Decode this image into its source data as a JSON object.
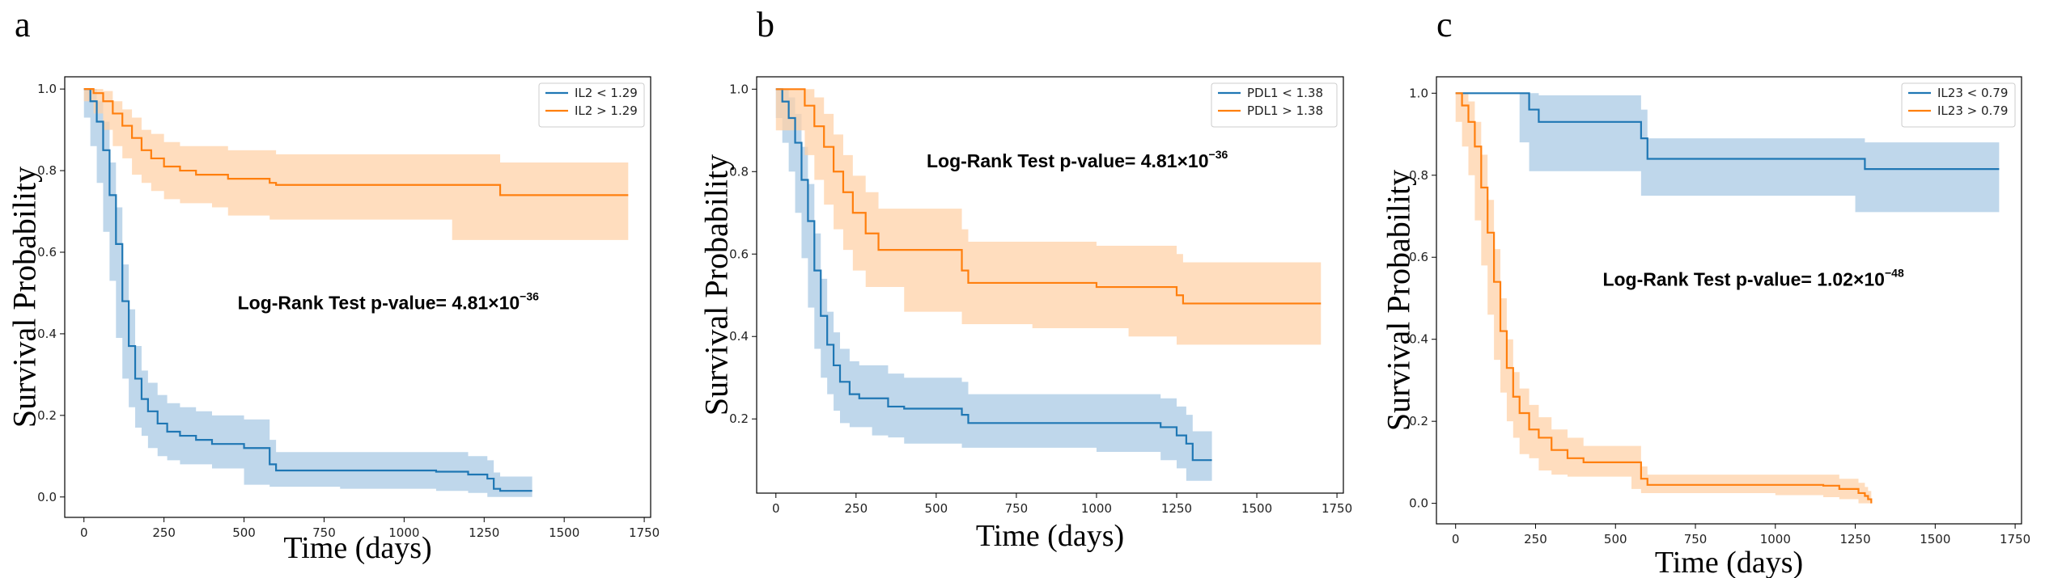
{
  "colors": {
    "blue": "#1f77b4",
    "orange": "#ff7f0e",
    "blue_fill": "#aac9e4",
    "orange_fill": "#ffd2a8"
  },
  "chart_data": [
    {
      "panel": "a",
      "type": "line",
      "title": "",
      "xlabel": "Time (days)",
      "ylabel": "Survival Probability",
      "xlim": [
        -60,
        1770
      ],
      "ylim": [
        -0.05,
        1.03
      ],
      "xticks": [
        0,
        250,
        500,
        750,
        1000,
        1250,
        1500,
        1750
      ],
      "xtick_labels": [
        "0",
        "250",
        "500",
        "750",
        "1000",
        "1250",
        "1500",
        "1750"
      ],
      "yticks": [
        0.0,
        0.2,
        0.4,
        0.6,
        0.8,
        1.0
      ],
      "ytick_labels": [
        "0.0",
        "0.2",
        "0.4",
        "0.6",
        "0.8",
        "1.0"
      ],
      "legend": "top-right",
      "annotation": {
        "text": "Log-Rank Test p-value= 4.81×10",
        "exp": "−36",
        "x": 480,
        "y": 0.46
      },
      "series": [
        {
          "name": "IL2 < 1.29",
          "color": "blue",
          "x": [
            0,
            20,
            40,
            60,
            80,
            100,
            120,
            140,
            160,
            180,
            200,
            230,
            260,
            300,
            350,
            400,
            500,
            580,
            600,
            800,
            1100,
            1200,
            1260,
            1280,
            1300,
            1400
          ],
          "y": [
            1.0,
            0.97,
            0.92,
            0.85,
            0.74,
            0.62,
            0.48,
            0.37,
            0.29,
            0.24,
            0.21,
            0.18,
            0.16,
            0.15,
            0.14,
            0.13,
            0.12,
            0.08,
            0.065,
            0.065,
            0.062,
            0.055,
            0.045,
            0.02,
            0.015,
            0.015
          ],
          "lower": [
            1.0,
            0.93,
            0.86,
            0.77,
            0.65,
            0.53,
            0.39,
            0.29,
            0.22,
            0.17,
            0.15,
            0.12,
            0.1,
            0.09,
            0.08,
            0.08,
            0.07,
            0.03,
            0.025,
            0.025,
            0.02,
            0.015,
            0.01,
            0.0,
            0.0,
            0.0
          ],
          "upper": [
            1.0,
            1.0,
            0.97,
            0.92,
            0.82,
            0.71,
            0.57,
            0.46,
            0.37,
            0.31,
            0.28,
            0.25,
            0.23,
            0.22,
            0.21,
            0.2,
            0.19,
            0.14,
            0.11,
            0.11,
            0.11,
            0.1,
            0.09,
            0.06,
            0.05,
            0.05
          ]
        },
        {
          "name": "IL2 > 1.29",
          "color": "orange",
          "x": [
            0,
            30,
            60,
            90,
            120,
            150,
            180,
            210,
            250,
            300,
            350,
            400,
            450,
            580,
            600,
            800,
            1000,
            1150,
            1300,
            1700
          ],
          "y": [
            1.0,
            0.99,
            0.97,
            0.94,
            0.91,
            0.88,
            0.85,
            0.83,
            0.81,
            0.8,
            0.79,
            0.79,
            0.78,
            0.77,
            0.765,
            0.765,
            0.765,
            0.765,
            0.74,
            0.74
          ],
          "lower": [
            1.0,
            0.97,
            0.94,
            0.9,
            0.86,
            0.83,
            0.79,
            0.77,
            0.75,
            0.73,
            0.72,
            0.72,
            0.71,
            0.69,
            0.68,
            0.68,
            0.68,
            0.68,
            0.63,
            0.63
          ],
          "upper": [
            1.0,
            1.0,
            0.995,
            0.97,
            0.95,
            0.93,
            0.9,
            0.89,
            0.87,
            0.86,
            0.86,
            0.86,
            0.85,
            0.85,
            0.84,
            0.84,
            0.84,
            0.84,
            0.82,
            0.82
          ]
        }
      ]
    },
    {
      "panel": "b",
      "type": "line",
      "title": "",
      "xlabel": "Time (days)",
      "ylabel": "Survival Probability",
      "xlim": [
        -60,
        1770
      ],
      "ylim": [
        0.02,
        1.03
      ],
      "xticks": [
        0,
        250,
        500,
        750,
        1000,
        1250,
        1500,
        1750
      ],
      "xtick_labels": [
        "0",
        "250",
        "500",
        "750",
        "1000",
        "1250",
        "1500",
        "1750"
      ],
      "yticks": [
        0.2,
        0.4,
        0.6,
        0.8,
        1.0
      ],
      "ytick_labels": [
        "0.2",
        "0.4",
        "0.6",
        "0.8",
        "1.0"
      ],
      "legend": "top-right",
      "annotation": {
        "text": "Log-Rank Test p-value= 4.81×10",
        "exp": "−36",
        "x": 470,
        "y": 0.81
      },
      "series": [
        {
          "name": "PDL1 < 1.38",
          "color": "blue",
          "x": [
            0,
            20,
            40,
            60,
            80,
            100,
            120,
            140,
            160,
            180,
            200,
            230,
            260,
            300,
            350,
            400,
            580,
            600,
            800,
            1000,
            1200,
            1250,
            1280,
            1300,
            1360
          ],
          "y": [
            1.0,
            0.97,
            0.93,
            0.87,
            0.78,
            0.68,
            0.56,
            0.45,
            0.38,
            0.33,
            0.29,
            0.26,
            0.25,
            0.25,
            0.23,
            0.225,
            0.21,
            0.19,
            0.19,
            0.19,
            0.18,
            0.16,
            0.14,
            0.1,
            0.1
          ],
          "lower": [
            1.0,
            0.93,
            0.87,
            0.8,
            0.7,
            0.59,
            0.47,
            0.37,
            0.3,
            0.26,
            0.22,
            0.19,
            0.18,
            0.18,
            0.16,
            0.155,
            0.14,
            0.13,
            0.13,
            0.13,
            0.12,
            0.1,
            0.08,
            0.05,
            0.05
          ],
          "upper": [
            1.0,
            1.0,
            0.98,
            0.94,
            0.86,
            0.77,
            0.65,
            0.54,
            0.46,
            0.41,
            0.37,
            0.34,
            0.33,
            0.33,
            0.31,
            0.3,
            0.29,
            0.26,
            0.26,
            0.26,
            0.25,
            0.23,
            0.21,
            0.17,
            0.17
          ]
        },
        {
          "name": "PDL1 > 1.38",
          "color": "orange",
          "x": [
            0,
            90,
            120,
            150,
            180,
            210,
            240,
            280,
            320,
            400,
            580,
            600,
            800,
            1000,
            1100,
            1250,
            1270,
            1700
          ],
          "y": [
            1.0,
            0.96,
            0.91,
            0.86,
            0.8,
            0.75,
            0.7,
            0.65,
            0.61,
            0.61,
            0.56,
            0.53,
            0.53,
            0.52,
            0.52,
            0.5,
            0.48,
            0.48
          ],
          "lower": [
            1.0,
            0.9,
            0.84,
            0.78,
            0.72,
            0.66,
            0.61,
            0.56,
            0.52,
            0.52,
            0.46,
            0.43,
            0.43,
            0.42,
            0.42,
            0.4,
            0.38,
            0.38
          ],
          "upper": [
            1.0,
            1.0,
            0.98,
            0.94,
            0.89,
            0.84,
            0.79,
            0.75,
            0.71,
            0.71,
            0.66,
            0.63,
            0.63,
            0.62,
            0.62,
            0.6,
            0.58,
            0.58
          ]
        }
      ]
    },
    {
      "panel": "c",
      "type": "line",
      "title": "",
      "xlabel": "Time (days)",
      "ylabel": "Survival Probability",
      "xlim": [
        -60,
        1770
      ],
      "ylim": [
        -0.05,
        1.04
      ],
      "xticks": [
        0,
        250,
        500,
        750,
        1000,
        1250,
        1500,
        1750
      ],
      "xtick_labels": [
        "0",
        "250",
        "500",
        "750",
        "1000",
        "1250",
        "1500",
        "1750"
      ],
      "yticks": [
        0.0,
        0.2,
        0.4,
        0.6,
        0.8,
        1.0
      ],
      "ytick_labels": [
        "0.0",
        "0.2",
        "0.4",
        "0.6",
        "0.8",
        "1.0"
      ],
      "legend": "top-right",
      "annotation": {
        "text": "Log-Rank Test p-value= 1.02×10",
        "exp": "−48",
        "x": 460,
        "y": 0.53
      },
      "series": [
        {
          "name": "IL23 < 0.79",
          "color": "blue",
          "x": [
            0,
            200,
            230,
            260,
            580,
            600,
            1200,
            1250,
            1280,
            1700
          ],
          "y": [
            1.0,
            1.0,
            0.96,
            0.93,
            0.89,
            0.84,
            0.84,
            0.84,
            0.815,
            0.815
          ],
          "lower": [
            1.0,
            1.0,
            0.88,
            0.81,
            0.81,
            0.75,
            0.75,
            0.75,
            0.71,
            0.71
          ],
          "upper": [
            1.0,
            1.0,
            1.0,
            0.995,
            0.96,
            0.89,
            0.89,
            0.89,
            0.88,
            0.88
          ]
        },
        {
          "name": "IL23 > 0.79",
          "color": "orange",
          "x": [
            0,
            20,
            40,
            60,
            80,
            100,
            120,
            140,
            160,
            180,
            200,
            230,
            260,
            300,
            350,
            400,
            550,
            580,
            600,
            800,
            1000,
            1150,
            1200,
            1260,
            1280,
            1290,
            1300
          ],
          "y": [
            1.0,
            0.97,
            0.93,
            0.87,
            0.77,
            0.66,
            0.54,
            0.42,
            0.33,
            0.26,
            0.22,
            0.18,
            0.16,
            0.13,
            0.11,
            0.1,
            0.1,
            0.06,
            0.045,
            0.045,
            0.045,
            0.043,
            0.035,
            0.025,
            0.018,
            0.01,
            0.0
          ],
          "lower": [
            1.0,
            0.93,
            0.87,
            0.8,
            0.69,
            0.58,
            0.46,
            0.35,
            0.27,
            0.2,
            0.16,
            0.12,
            0.11,
            0.08,
            0.07,
            0.065,
            0.065,
            0.035,
            0.025,
            0.025,
            0.025,
            0.02,
            0.015,
            0.01,
            0.0,
            0.0,
            0.0
          ],
          "upper": [
            1.0,
            1.0,
            0.98,
            0.93,
            0.85,
            0.74,
            0.62,
            0.5,
            0.4,
            0.32,
            0.28,
            0.24,
            0.21,
            0.18,
            0.16,
            0.14,
            0.14,
            0.09,
            0.07,
            0.07,
            0.07,
            0.07,
            0.06,
            0.05,
            0.04,
            0.03,
            0.02
          ]
        }
      ]
    }
  ]
}
